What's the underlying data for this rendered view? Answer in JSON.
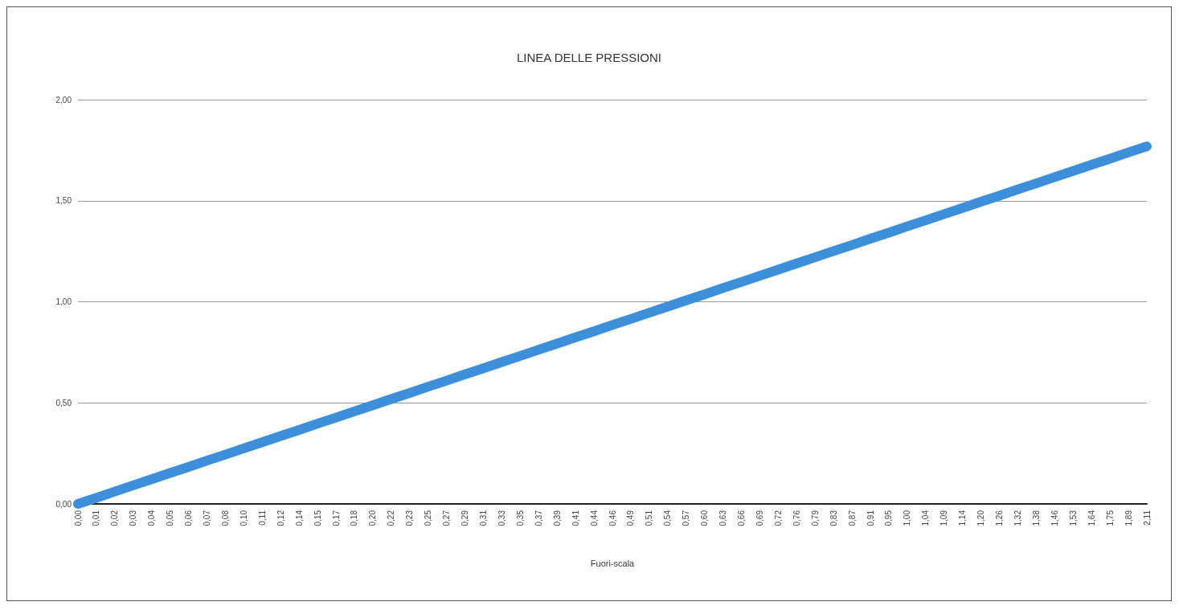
{
  "chart_data": {
    "type": "line",
    "title": "LINEA DELLE PRESSIONI",
    "xlabel": "Fuori-scala",
    "categories": [
      "0,00",
      "0,01",
      "0,02",
      "0,03",
      "0,04",
      "0,05",
      "0,06",
      "0,07",
      "0,08",
      "0,10",
      "0,11",
      "0,12",
      "0,14",
      "0,15",
      "0,17",
      "0,18",
      "0,20",
      "0,22",
      "0,23",
      "0,25",
      "0,27",
      "0,29",
      "0,31",
      "0,33",
      "0,35",
      "0,37",
      "0,39",
      "0,41",
      "0,44",
      "0,46",
      "0,49",
      "0,51",
      "0,54",
      "0,57",
      "0,60",
      "0,63",
      "0,66",
      "0,69",
      "0,72",
      "0,76",
      "0,79",
      "0,83",
      "0,87",
      "0,91",
      "0,95",
      "1,00",
      "1,04",
      "1,09",
      "1,14",
      "1,20",
      "1,26",
      "1,32",
      "1,38",
      "1,46",
      "1,53",
      "1,64",
      "1,75",
      "1,89",
      "2,11"
    ],
    "series": [
      {
        "color": "#3c8fd8",
        "values": [
          0,
          0.03,
          0.061,
          0.092,
          0.122,
          0.153,
          0.183,
          0.214,
          0.244,
          0.275,
          0.305,
          0.336,
          0.366,
          0.397,
          0.427,
          0.458,
          0.488,
          0.519,
          0.549,
          0.58,
          0.61,
          0.641,
          0.671,
          0.702,
          0.732,
          0.763,
          0.793,
          0.824,
          0.854,
          0.885,
          0.915,
          0.946,
          0.976,
          1.007,
          1.037,
          1.068,
          1.098,
          1.129,
          1.159,
          1.19,
          1.22,
          1.251,
          1.281,
          1.312,
          1.342,
          1.373,
          1.403,
          1.434,
          1.464,
          1.495,
          1.525,
          1.556,
          1.586,
          1.617,
          1.647,
          1.678,
          1.708,
          1.739,
          1.769
        ]
      }
    ],
    "ylim": [
      0,
      2
    ],
    "yticks": [
      {
        "value": 0,
        "label": "0,00"
      },
      {
        "value": 0.5,
        "label": "0,50"
      },
      {
        "value": 1,
        "label": "1,00"
      },
      {
        "value": 1.5,
        "label": "1,50"
      },
      {
        "value": 2,
        "label": "2,00"
      }
    ],
    "grid": "y",
    "line_style": "solid"
  }
}
